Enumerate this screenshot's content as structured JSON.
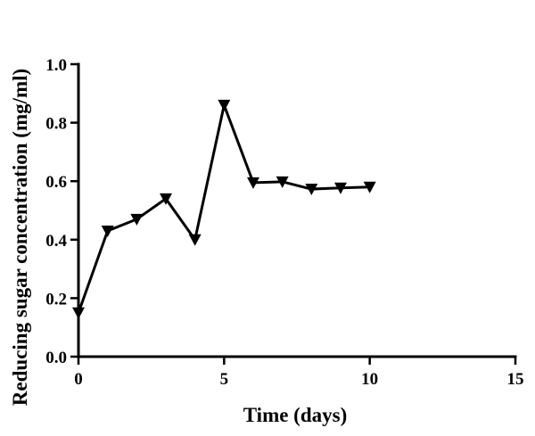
{
  "chart_data": {
    "type": "line",
    "title": "",
    "xlabel": "Time (days)",
    "ylabel": "Reducing sugar concentration (mg/ml)",
    "xlim": [
      0,
      15
    ],
    "ylim": [
      0.0,
      1.0
    ],
    "xticks": [
      "0",
      "5",
      "10",
      "15"
    ],
    "yticks": [
      "0.0",
      "0.2",
      "0.4",
      "0.6",
      "0.8",
      "1.0"
    ],
    "grid": false,
    "legend": "none",
    "marker": "inverted-triangle",
    "color": "#000000",
    "series": [
      {
        "x": [
          0,
          1,
          2,
          3,
          4,
          5,
          6,
          7,
          8,
          9,
          10
        ],
        "y": [
          0.15,
          0.43,
          0.47,
          0.54,
          0.4,
          0.86,
          0.595,
          0.598,
          0.573,
          0.577,
          0.58
        ]
      }
    ]
  }
}
